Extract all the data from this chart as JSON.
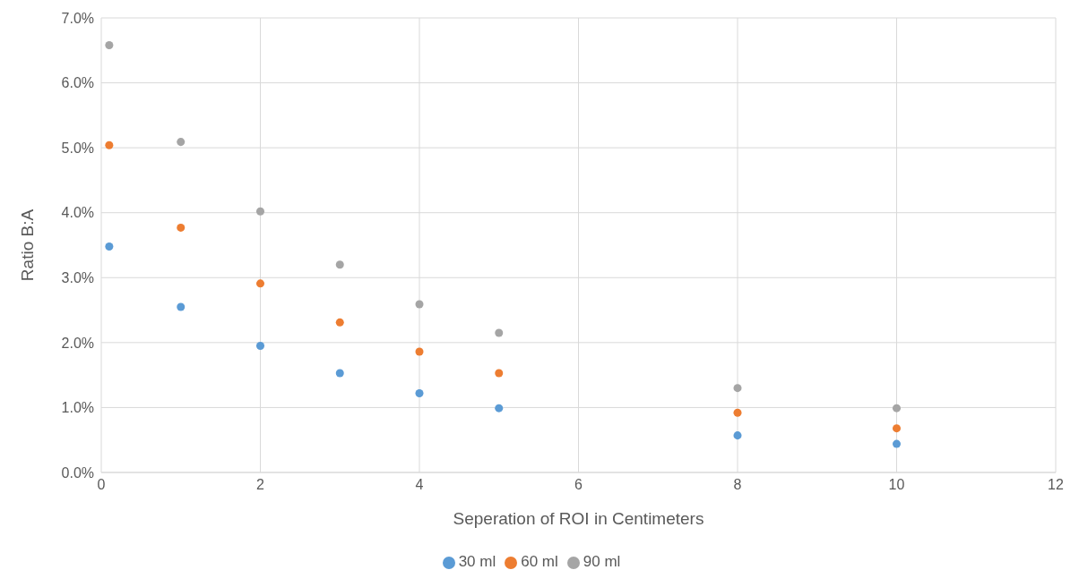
{
  "chart_data": {
    "type": "scatter",
    "xlabel": "Seperation of ROI in Centimeters",
    "ylabel": "Ratio B:A",
    "x": [
      0.1,
      1,
      2,
      3,
      4,
      5,
      8,
      10
    ],
    "series": [
      {
        "name": "30 ml",
        "color": "#5b9bd5",
        "values": [
          3.48,
          2.55,
          1.95,
          1.53,
          1.22,
          0.99,
          0.57,
          0.44
        ]
      },
      {
        "name": "60 ml",
        "color": "#ed7d31",
        "values": [
          5.04,
          3.77,
          2.91,
          2.31,
          1.86,
          1.53,
          0.92,
          0.68
        ]
      },
      {
        "name": "90 ml",
        "color": "#a5a5a5",
        "values": [
          6.58,
          5.09,
          4.02,
          3.2,
          2.59,
          2.15,
          1.3,
          0.99
        ]
      }
    ],
    "xlim": [
      0,
      12
    ],
    "xticks": [
      0,
      2,
      4,
      6,
      8,
      10,
      12
    ],
    "ylim": [
      0,
      7
    ],
    "yticks": [
      {
        "value": 0,
        "label": "0.0%"
      },
      {
        "value": 1,
        "label": "1.0%"
      },
      {
        "value": 2,
        "label": "2.0%"
      },
      {
        "value": 3,
        "label": "3.0%"
      },
      {
        "value": 4,
        "label": "4.0%"
      },
      {
        "value": 5,
        "label": "5.0%"
      },
      {
        "value": 6,
        "label": "6.0%"
      },
      {
        "value": 7,
        "label": "7.0%"
      }
    ],
    "grid": true,
    "legend": "bottom",
    "marker": "circle"
  }
}
